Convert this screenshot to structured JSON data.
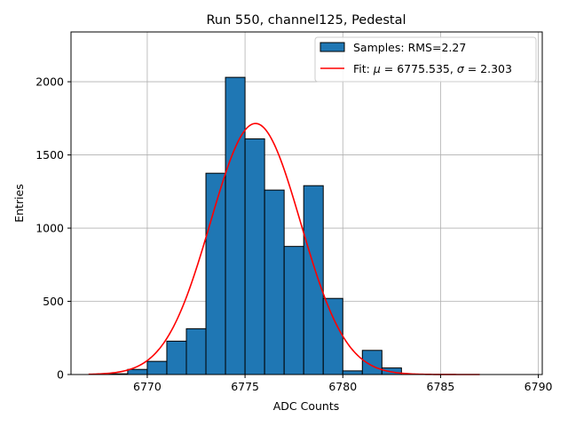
{
  "chart_data": {
    "type": "histogram",
    "title": "Run 550, channel125, Pedestal",
    "xlabel": "ADC Counts",
    "ylabel": "Entries",
    "xlim": [
      6766.1,
      6790.2
    ],
    "ylim": [
      0,
      2340
    ],
    "xticks": [
      6770,
      6775,
      6780,
      6785,
      6790
    ],
    "yticks": [
      0,
      500,
      1000,
      1500,
      2000
    ],
    "grid": true,
    "legend_position": "top-right",
    "histogram": {
      "name": "Samples: RMS=2.27",
      "color": "#1f77b4",
      "edgecolor": "#000000",
      "bin_edges": [
        6767,
        6768,
        6769,
        6770,
        6771,
        6772,
        6773,
        6774,
        6775,
        6776,
        6777,
        6778,
        6779,
        6780,
        6781,
        6782,
        6783
      ],
      "counts": [
        0,
        5,
        35,
        90,
        228,
        313,
        1375,
        2030,
        1610,
        1260,
        875,
        1290,
        520,
        25,
        165,
        45
      ]
    },
    "fit": {
      "label_prefix": "Fit: ",
      "mu_symbol": "μ",
      "mu_text": " = 6775.535, ",
      "sigma_symbol": "σ",
      "sigma_text": " = 2.303",
      "color": "#ff0000",
      "mu": 6775.535,
      "sigma": 2.303,
      "amplitude": 1715,
      "x_range": [
        6767,
        6787
      ]
    }
  }
}
